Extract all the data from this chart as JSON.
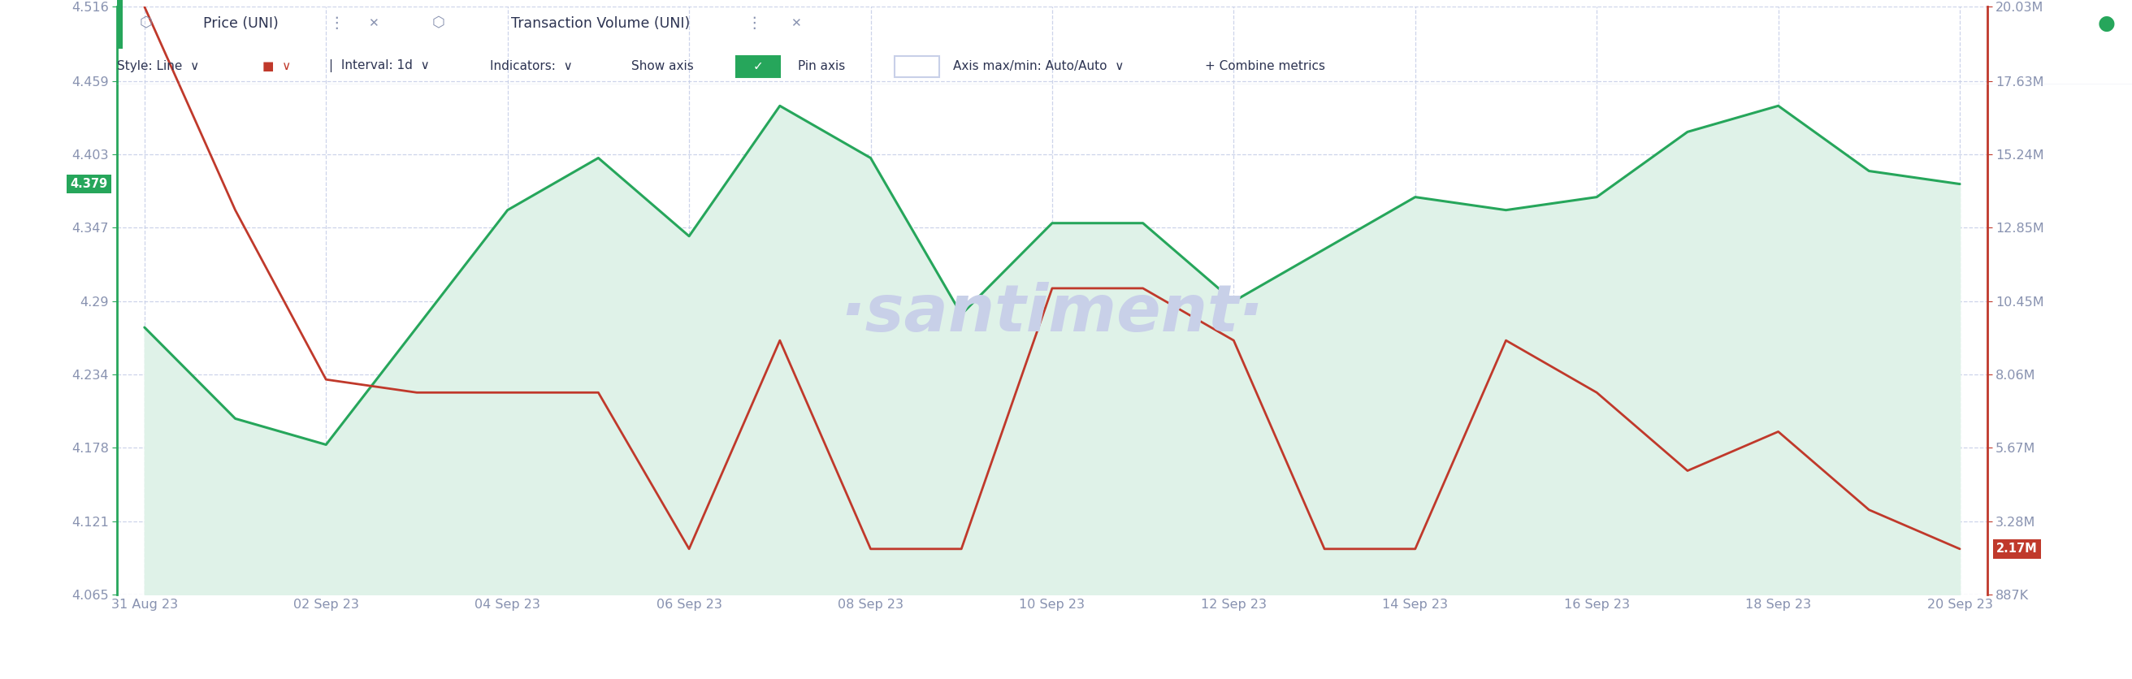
{
  "title_tab1": "Price (UNI)",
  "title_tab2": "Transaction Volume (UNI)",
  "x_labels": [
    "31 Aug 23",
    "02 Sep 23",
    "04 Sep 23",
    "06 Sep 23",
    "08 Sep 23",
    "10 Sep 23",
    "12 Sep 23",
    "14 Sep 23",
    "16 Sep 23",
    "18 Sep 23",
    "20 Sep 23"
  ],
  "x_positions": [
    0,
    2,
    4,
    6,
    8,
    10,
    12,
    14,
    16,
    18,
    20
  ],
  "green_line_x": [
    0,
    1,
    2,
    3,
    4,
    5,
    6,
    7,
    8,
    9,
    10,
    11,
    12,
    13,
    14,
    15,
    16,
    17,
    18,
    19,
    20
  ],
  "green_line_y": [
    4.27,
    4.2,
    4.18,
    4.27,
    4.36,
    4.4,
    4.34,
    4.44,
    4.4,
    4.28,
    4.35,
    4.35,
    4.29,
    4.33,
    4.37,
    4.36,
    4.37,
    4.42,
    4.44,
    4.39,
    4.38
  ],
  "red_line_x": [
    0,
    1,
    2,
    3,
    4,
    5,
    6,
    7,
    8,
    9,
    10,
    11,
    12,
    13,
    14,
    15,
    16,
    17,
    18,
    19,
    20
  ],
  "red_line_y": [
    4.516,
    4.36,
    4.23,
    4.22,
    4.22,
    4.22,
    4.1,
    4.26,
    4.1,
    4.1,
    4.3,
    4.3,
    4.26,
    4.1,
    4.1,
    4.26,
    4.22,
    4.16,
    4.19,
    4.13,
    4.1
  ],
  "left_yticks": [
    4.065,
    4.121,
    4.178,
    4.234,
    4.29,
    4.347,
    4.403,
    4.459,
    4.516
  ],
  "left_ytick_labels": [
    "4.065",
    "4.121",
    "4.178",
    "4.234",
    "4.29",
    "4.347",
    "4.403",
    "4.459",
    "4.516"
  ],
  "right_yticks_labels": [
    "887K",
    "3.28M",
    "5.67M",
    "8.06M",
    "10.45M",
    "12.85M",
    "15.24M",
    "17.63M",
    "20.03M"
  ],
  "green_last_label": "4.379",
  "red_last_label": "2.17M",
  "green_line_color": "#26a65b",
  "green_fill_color": "#dff2e8",
  "red_line_color": "#c0392b",
  "background_color": "#ffffff",
  "grid_color": "#c8d0e8",
  "label_color": "#8892b0",
  "tab1_border_color": "#26a65b",
  "tab2_border_color": "#e05a47",
  "tab2_bg_color": "#fff8f7",
  "watermark_color": "#c8d0e8",
  "ymin": 4.065,
  "ymax": 4.516
}
